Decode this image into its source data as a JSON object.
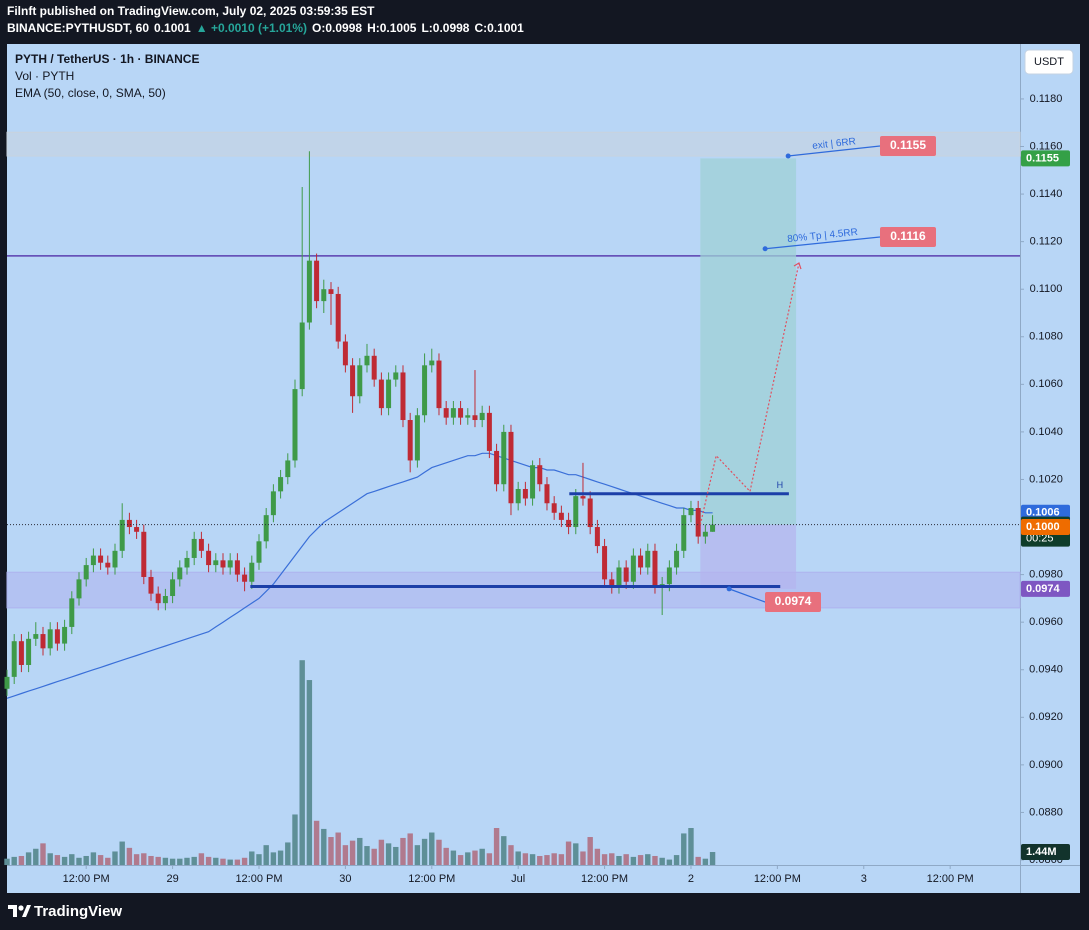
{
  "header": {
    "publisher": "Filnft published on TradingView.com, July 02, 2025 03:59:35 EST",
    "symbol": "BINANCE:PYTHUSDT, 60",
    "last": "0.1001",
    "change": "▲ +0.0010 (+1.01%)",
    "ohlc": [
      "O:0.0998",
      "H:0.1005",
      "L:0.0998",
      "C:0.1001"
    ]
  },
  "footer": {
    "brand": "TradingView"
  },
  "chart_data": {
    "type": "candlestick",
    "legend": [
      "PYTH / TetherUS · 1h · BINANCE",
      "Vol · PYTH",
      "EMA (50, close, 0, SMA, 50)"
    ],
    "currency_button": "USDT",
    "up_color": "#3f9a48",
    "down_color": "#bf2a34",
    "volume_up_color": "#5e8f97",
    "volume_down_color": "#b07a8e",
    "ema_color": "#3a6fd8",
    "xlim": [
      0,
      140.7
    ],
    "xticks": [
      {
        "value": 11,
        "label": "12:00 PM"
      },
      {
        "value": 23,
        "label": "29"
      },
      {
        "value": 35,
        "label": "12:00 PM"
      },
      {
        "value": 47,
        "label": "30"
      },
      {
        "value": 59,
        "label": "12:00 PM"
      },
      {
        "value": 71,
        "label": "Jul"
      },
      {
        "value": 83,
        "label": "12:00 PM"
      },
      {
        "value": 95,
        "label": "2"
      },
      {
        "value": 107,
        "label": "12:00 PM"
      },
      {
        "value": 119,
        "label": "3"
      },
      {
        "value": 131,
        "label": "12:00 PM"
      }
    ],
    "ylim": [
      0.08579,
      0.12031
    ],
    "yticks": [
      {
        "value": 0.086,
        "label": "0.0860"
      },
      {
        "value": 0.088,
        "label": "0.0880"
      },
      {
        "value": 0.09,
        "label": "0.0900"
      },
      {
        "value": 0.092,
        "label": "0.0920"
      },
      {
        "value": 0.094,
        "label": "0.0940"
      },
      {
        "value": 0.096,
        "label": "0.0960"
      },
      {
        "value": 0.098,
        "label": "0.0980"
      },
      {
        "value": 0.1,
        "label": "0.1000"
      },
      {
        "value": 0.102,
        "label": "0.1020"
      },
      {
        "value": 0.104,
        "label": "0.1040"
      },
      {
        "value": 0.106,
        "label": "0.1060"
      },
      {
        "value": 0.108,
        "label": "0.1080"
      },
      {
        "value": 0.11,
        "label": "0.1100"
      },
      {
        "value": 0.112,
        "label": "0.1120"
      },
      {
        "value": 0.114,
        "label": "0.1140"
      },
      {
        "value": 0.116,
        "label": "0.1160"
      },
      {
        "value": 0.118,
        "label": "0.1180"
      }
    ],
    "open": [
      0.0932,
      0.0937,
      0.0952,
      0.0942,
      0.0953,
      0.0955,
      0.0949,
      0.0957,
      0.0951,
      0.0958,
      0.097,
      0.0978,
      0.0984,
      0.0988,
      0.0985,
      0.0983,
      0.099,
      0.1003,
      0.1,
      0.0998,
      0.0979,
      0.0972,
      0.0968,
      0.0971,
      0.0978,
      0.0983,
      0.0987,
      0.0995,
      0.099,
      0.0984,
      0.0986,
      0.0983,
      0.0986,
      0.098,
      0.0977,
      0.0985,
      0.0994,
      0.1005,
      0.1015,
      0.1021,
      0.1028,
      0.1058,
      0.1086,
      0.1112,
      0.1095,
      0.11,
      0.1098,
      0.1078,
      0.1068,
      0.1055,
      0.1068,
      0.1072,
      0.1062,
      0.105,
      0.1062,
      0.1065,
      0.1045,
      0.1028,
      0.1047,
      0.1068,
      0.107,
      0.105,
      0.1046,
      0.105,
      0.1046,
      0.1047,
      0.1045,
      0.1048,
      0.1032,
      0.1018,
      0.104,
      0.101,
      0.1016,
      0.1012,
      0.1026,
      0.1018,
      0.101,
      0.1006,
      0.1003,
      0.1,
      0.1013,
      0.1012,
      0.1,
      0.0992,
      0.0978,
      0.0975,
      0.0983,
      0.0977,
      0.0988,
      0.0983,
      0.099,
      0.0975,
      0.0976,
      0.0983,
      0.099,
      0.1005,
      0.1008,
      0.0996,
      0.0998
    ],
    "high": [
      0.094,
      0.0955,
      0.0955,
      0.0956,
      0.096,
      0.0958,
      0.096,
      0.096,
      0.0961,
      0.0973,
      0.0981,
      0.0987,
      0.0991,
      0.0991,
      0.0988,
      0.0993,
      0.101,
      0.1006,
      0.1003,
      0.1001,
      0.0982,
      0.0975,
      0.0974,
      0.0981,
      0.0986,
      0.099,
      0.0998,
      0.0998,
      0.0993,
      0.0989,
      0.0989,
      0.0989,
      0.0989,
      0.0983,
      0.0988,
      0.0997,
      0.1008,
      0.1018,
      0.1024,
      0.1031,
      0.1062,
      0.1143,
      0.1158,
      0.1115,
      0.1104,
      0.1103,
      0.1101,
      0.1081,
      0.1071,
      0.1071,
      0.1077,
      0.1075,
      0.1065,
      0.1065,
      0.1068,
      0.1068,
      0.1048,
      0.105,
      0.1073,
      0.1075,
      0.1073,
      0.1053,
      0.1053,
      0.1053,
      0.105,
      0.1066,
      0.1051,
      0.1051,
      0.1035,
      0.1043,
      0.1043,
      0.1019,
      0.1019,
      0.1028,
      0.1029,
      0.1021,
      0.1013,
      0.1009,
      0.1006,
      0.1016,
      0.1027,
      0.1015,
      0.1003,
      0.0995,
      0.0981,
      0.0986,
      0.0986,
      0.0991,
      0.0991,
      0.0993,
      0.0993,
      0.0979,
      0.0986,
      0.0993,
      0.1008,
      0.1011,
      0.1011,
      0.1001,
      0.1005
    ],
    "low": [
      0.0929,
      0.0934,
      0.0939,
      0.0939,
      0.095,
      0.0946,
      0.0946,
      0.0948,
      0.0948,
      0.0955,
      0.0967,
      0.0975,
      0.0981,
      0.0982,
      0.098,
      0.098,
      0.0987,
      0.0997,
      0.0995,
      0.0976,
      0.0969,
      0.0965,
      0.0965,
      0.0968,
      0.0975,
      0.098,
      0.0984,
      0.0987,
      0.0981,
      0.0981,
      0.098,
      0.098,
      0.0977,
      0.0973,
      0.0974,
      0.0982,
      0.0991,
      0.1002,
      0.1012,
      0.1018,
      0.1025,
      0.1055,
      0.1083,
      0.1092,
      0.109,
      0.1085,
      0.1075,
      0.1065,
      0.1048,
      0.1052,
      0.1065,
      0.1059,
      0.1047,
      0.1047,
      0.1059,
      0.1042,
      0.1023,
      0.1025,
      0.1044,
      0.1065,
      0.1047,
      0.1043,
      0.1043,
      0.1043,
      0.1043,
      0.1042,
      0.1042,
      0.1029,
      0.1015,
      0.1015,
      0.1005,
      0.1007,
      0.1009,
      0.1009,
      0.1015,
      0.1007,
      0.1003,
      0.1,
      0.0997,
      0.0997,
      0.1009,
      0.0997,
      0.0989,
      0.0975,
      0.0972,
      0.0972,
      0.0974,
      0.0974,
      0.098,
      0.098,
      0.0972,
      0.0963,
      0.0973,
      0.098,
      0.0987,
      0.1002,
      0.0993,
      0.0993,
      0.0998
    ],
    "close": [
      0.0937,
      0.0952,
      0.0942,
      0.0953,
      0.0955,
      0.0949,
      0.0957,
      0.0951,
      0.0958,
      0.097,
      0.0978,
      0.0984,
      0.0988,
      0.0985,
      0.0983,
      0.099,
      0.1003,
      0.1,
      0.0998,
      0.0979,
      0.0972,
      0.0968,
      0.0971,
      0.0978,
      0.0983,
      0.0987,
      0.0995,
      0.099,
      0.0984,
      0.0986,
      0.0983,
      0.0986,
      0.098,
      0.0977,
      0.0985,
      0.0994,
      0.1005,
      0.1015,
      0.1021,
      0.1028,
      0.1058,
      0.1086,
      0.1112,
      0.1095,
      0.11,
      0.1098,
      0.1078,
      0.1068,
      0.1055,
      0.1068,
      0.1072,
      0.1062,
      0.105,
      0.1062,
      0.1065,
      0.1045,
      0.1028,
      0.1047,
      0.1068,
      0.107,
      0.105,
      0.1046,
      0.105,
      0.1046,
      0.1047,
      0.1045,
      0.1048,
      0.1032,
      0.1018,
      0.104,
      0.101,
      0.1016,
      0.1012,
      0.1026,
      0.1018,
      0.101,
      0.1006,
      0.1003,
      0.1,
      0.1013,
      0.1012,
      0.1,
      0.0992,
      0.0978,
      0.0975,
      0.0983,
      0.0977,
      0.0988,
      0.0983,
      0.099,
      0.0975,
      0.0976,
      0.0983,
      0.099,
      0.1005,
      0.1008,
      0.0996,
      0.0998,
      0.1001
    ],
    "volume": [
      700000,
      900000,
      1000000,
      1400000,
      1800000,
      2400000,
      1300000,
      1100000,
      900000,
      1200000,
      800000,
      1000000,
      1400000,
      1100000,
      800000,
      1500000,
      2600000,
      1900000,
      1200000,
      1300000,
      1000000,
      900000,
      800000,
      700000,
      700000,
      800000,
      900000,
      1300000,
      900000,
      800000,
      700000,
      600000,
      600000,
      800000,
      1500000,
      1200000,
      2200000,
      1400000,
      1600000,
      2500000,
      5600000,
      22700000,
      20500000,
      4900000,
      4000000,
      3100000,
      3600000,
      2200000,
      2700000,
      3000000,
      2100000,
      1800000,
      2800000,
      2400000,
      2000000,
      3000000,
      3500000,
      2200000,
      2900000,
      3600000,
      2800000,
      1900000,
      1600000,
      1100000,
      1400000,
      1600000,
      1800000,
      1300000,
      4100000,
      3200000,
      2200000,
      1500000,
      1300000,
      1200000,
      1000000,
      1100000,
      1300000,
      1200000,
      2600000,
      2400000,
      1500000,
      3100000,
      1800000,
      1200000,
      1300000,
      1000000,
      1200000,
      900000,
      1100000,
      1200000,
      1000000,
      800000,
      600000,
      1100000,
      3500000,
      4100000,
      900000,
      700000,
      1440000
    ],
    "volume_ylim": [
      0,
      91000000
    ],
    "volume_value_label": "1.44M",
    "ema": [
      0.0928,
      0.0929,
      0.093,
      0.0931,
      0.0932,
      0.0933,
      0.0934,
      0.0935,
      0.0936,
      0.0937,
      0.0938,
      0.0939,
      0.094,
      0.0941,
      0.0942,
      0.0943,
      0.0944,
      0.0945,
      0.0946,
      0.0947,
      0.0948,
      0.0949,
      0.095,
      0.0951,
      0.0952,
      0.0953,
      0.0954,
      0.0955,
      0.0956,
      0.0958,
      0.096,
      0.0962,
      0.0964,
      0.0966,
      0.0968,
      0.097,
      0.0973,
      0.0976,
      0.098,
      0.0984,
      0.0988,
      0.0992,
      0.0996,
      0.0999,
      0.1002,
      0.1004,
      0.1006,
      0.1008,
      0.101,
      0.1012,
      0.1014,
      0.1015,
      0.1016,
      0.1017,
      0.1018,
      0.1019,
      0.102,
      0.1021,
      0.1023,
      0.1025,
      0.1026,
      0.1027,
      0.1028,
      0.1029,
      0.103,
      0.103,
      0.1031,
      0.1031,
      0.103,
      0.1029,
      0.1028,
      0.1027,
      0.1026,
      0.1025,
      0.1025,
      0.1024,
      0.1024,
      0.1023,
      0.1022,
      0.1022,
      0.1021,
      0.102,
      0.1019,
      0.1018,
      0.1017,
      0.1016,
      0.1015,
      0.1014,
      0.1013,
      0.1012,
      0.1011,
      0.101,
      0.1009,
      0.1008,
      0.1008,
      0.1007,
      0.1007,
      0.1006,
      0.1006
    ],
    "zones": [
      {
        "low": 0.1156,
        "high": 0.1166,
        "color": "#c9d3de"
      },
      {
        "low": 0.0966,
        "high": 0.0981,
        "color": "#aeb3ee"
      }
    ],
    "horizontal_line": {
      "value": 0.1114,
      "color": "#5b3fb0"
    },
    "support_line": {
      "value": 0.0975,
      "from": 33.8,
      "to": 107.4,
      "color": "#1c3fa8"
    },
    "resistance_line": {
      "value": 0.1014,
      "from": 78.1,
      "to": 108.6,
      "color": "#1c3fa8",
      "label": "H"
    },
    "position": {
      "from": 96.3,
      "to": 109.6,
      "entry": 0.1001,
      "target": 0.1155,
      "stop": 0.0974
    },
    "callouts": [
      {
        "x": 108.5,
        "value": 0.1156,
        "text": "exit | 6RR",
        "tag": 0.1155
      },
      {
        "x": 105.3,
        "value": 0.1117,
        "text": "80% Tp | 4.5RR",
        "tag": 0.1116
      },
      {
        "x": 100.3,
        "value": 0.0974,
        "tag": 0.0974
      }
    ],
    "projection": {
      "x": [
        96.3,
        98.5,
        103.2,
        110
      ],
      "values": [
        0.1001,
        0.103,
        0.1015,
        0.1111
      ],
      "color": "#e05060"
    },
    "price_tags": [
      {
        "value": 0.1155,
        "color": "#34a047"
      },
      {
        "value": 0.1006,
        "color": "#2f6bdc"
      },
      {
        "value": 0.1001,
        "color": "#0f3d2a",
        "countdown": "00:25"
      },
      {
        "value": 0.1,
        "label": "0.1000",
        "color": "#ef6c00"
      },
      {
        "value": 0.0974,
        "color": "#7e57c2"
      }
    ]
  }
}
